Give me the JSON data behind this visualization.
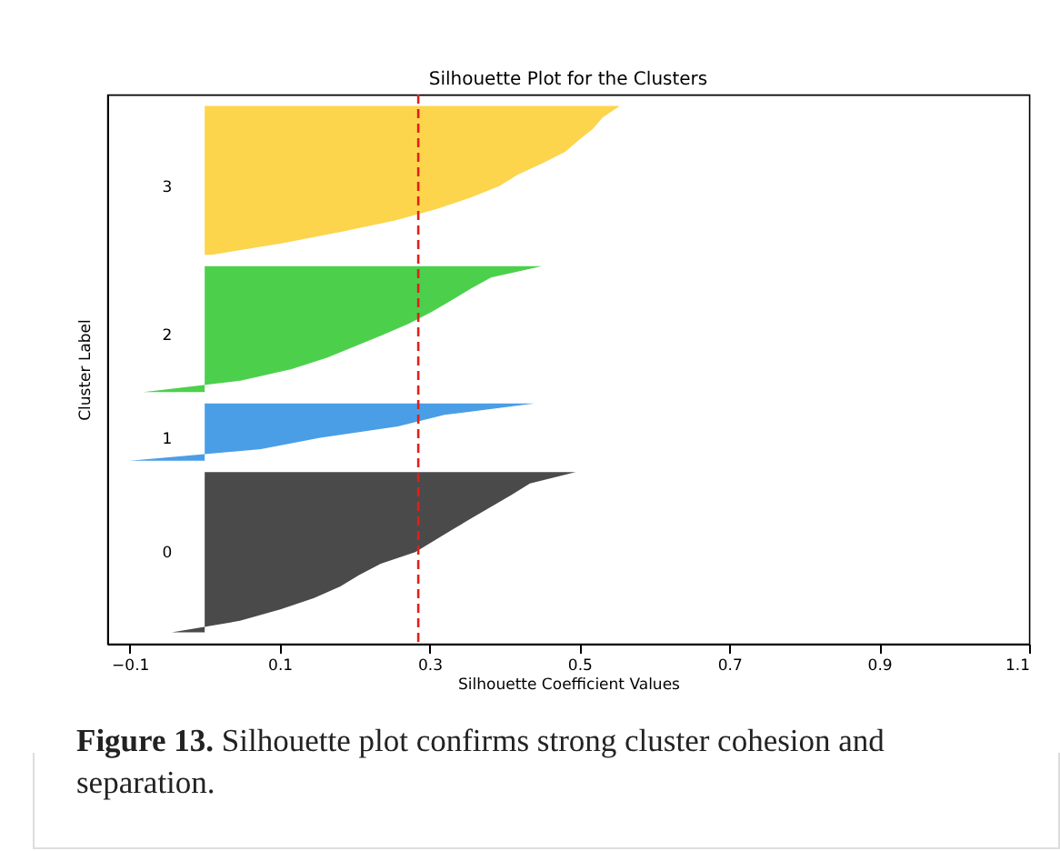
{
  "chart_data": {
    "type": "area",
    "orientation": "horizontal",
    "title": "Silhouette Plot for the Clusters",
    "xlabel": "Silhouette Coefficient Values",
    "ylabel": "Cluster Label",
    "xlim": [
      -0.13,
      1.1
    ],
    "xticks": [
      -0.1,
      0.1,
      0.3,
      0.5,
      0.7,
      0.9,
      1.1
    ],
    "grid": false,
    "categories": [
      null,
      null,
      null,
      null,
      null,
      null,
      null,
      null,
      null,
      null,
      null,
      null,
      null,
      null,
      null,
      null,
      null,
      null,
      null,
      null,
      null,
      null,
      null,
      null,
      null,
      null,
      null,
      null,
      null,
      null,
      null,
      null,
      null,
      null,
      null,
      null,
      null,
      null,
      null,
      null,
      null,
      null,
      null,
      null,
      null,
      null,
      null
    ],
    "series": [
      {
        "name": "0",
        "color": "#4a4a4a",
        "values": [
          null,
          null,
          null,
          null,
          null,
          null,
          null,
          null,
          null,
          null,
          null,
          null,
          null,
          null,
          null,
          null,
          null,
          null,
          null,
          null,
          null,
          null,
          null,
          null,
          null,
          null,
          null,
          null,
          null,
          null,
          null,
          null,
          0.495,
          0.434,
          0.409,
          0.383,
          0.357,
          0.331,
          0.306,
          0.281,
          0.235,
          0.206,
          0.181,
          0.146,
          0.101,
          0.047,
          -0.044
        ]
      },
      {
        "name": "1",
        "color": "#4a9ee6",
        "values": [
          null,
          null,
          null,
          null,
          null,
          null,
          null,
          null,
          null,
          null,
          null,
          null,
          null,
          null,
          null,
          null,
          null,
          null,
          null,
          null,
          null,
          null,
          null,
          null,
          null,
          null,
          0.44,
          0.32,
          0.258,
          0.154,
          0.075,
          -0.1,
          null,
          null,
          null,
          null,
          null,
          null,
          null,
          null,
          null,
          null,
          null,
          null,
          null,
          null,
          null
        ]
      },
      {
        "name": "2",
        "color": "#4cd04c",
        "values": [
          null,
          null,
          null,
          null,
          null,
          null,
          null,
          null,
          null,
          null,
          null,
          null,
          null,
          null,
          0.45,
          0.382,
          0.354,
          0.329,
          0.303,
          0.273,
          0.238,
          0.201,
          0.163,
          0.116,
          0.049,
          -0.082,
          null,
          null,
          null,
          null,
          null,
          null,
          null,
          null,
          null,
          null,
          null,
          null,
          null,
          null,
          null,
          null,
          null,
          null,
          null,
          null,
          null
        ]
      },
      {
        "name": "3",
        "color": "#fdd54c",
        "values": [
          0.554,
          0.531,
          0.518,
          0.499,
          0.481,
          0.451,
          0.418,
          0.393,
          0.355,
          0.31,
          0.254,
          0.182,
          0.104,
          0.01,
          null,
          null,
          null,
          null,
          null,
          null,
          null,
          null,
          null,
          null,
          null,
          null,
          null,
          null,
          null,
          null,
          null,
          null,
          null,
          null,
          null,
          null,
          null,
          null,
          null,
          null,
          null,
          null,
          null,
          null,
          null,
          null,
          null
        ]
      }
    ],
    "ref_lines": [
      {
        "axis": "x",
        "value": 0.285,
        "color": "#e0201c",
        "line_style": "dashed"
      }
    ],
    "annotations": [
      "Figure 13. Silhouette plot confirms strong cluster cohesion and separation."
    ]
  }
}
